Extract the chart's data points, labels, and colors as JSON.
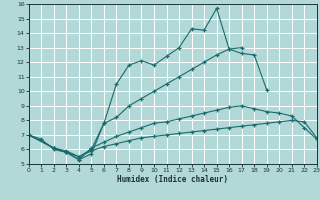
{
  "xlabel": "Humidex (Indice chaleur)",
  "background_color": "#b2d8d8",
  "grid_color": "#ffffff",
  "line_color": "#1a6b6b",
  "x_min": 0,
  "x_max": 23,
  "y_min": 5,
  "y_max": 16,
  "line1_x": [
    0,
    1,
    2,
    3,
    4,
    5,
    6,
    7,
    8,
    9,
    10,
    11,
    12,
    13,
    14,
    15,
    16,
    17,
    18,
    19
  ],
  "line1_y": [
    7.0,
    6.7,
    6.0,
    5.8,
    5.3,
    5.7,
    7.8,
    10.5,
    11.8,
    12.1,
    11.8,
    12.4,
    13.0,
    14.3,
    14.2,
    15.7,
    12.9,
    12.6,
    12.5,
    10.1
  ],
  "line2_x": [
    0,
    2,
    3,
    4,
    5,
    6,
    7,
    8,
    9,
    10,
    11,
    12,
    13,
    14,
    15,
    16,
    17
  ],
  "line2_y": [
    7.0,
    6.1,
    5.8,
    5.5,
    6.0,
    7.8,
    8.2,
    9.0,
    9.5,
    10.0,
    10.5,
    11.0,
    11.5,
    12.0,
    12.5,
    12.9,
    13.0
  ],
  "line3_x": [
    0,
    2,
    3,
    4,
    5,
    6,
    7,
    8,
    9,
    10,
    11,
    12,
    13,
    14,
    15,
    16,
    17,
    18,
    19,
    20,
    21,
    22,
    23
  ],
  "line3_y": [
    7.0,
    6.1,
    5.8,
    5.3,
    6.1,
    6.5,
    6.9,
    7.2,
    7.5,
    7.8,
    7.9,
    8.1,
    8.3,
    8.5,
    8.7,
    8.9,
    9.0,
    8.8,
    8.6,
    8.5,
    8.3,
    7.5,
    6.7
  ],
  "line4_x": [
    0,
    2,
    3,
    4,
    5,
    6,
    7,
    8,
    9,
    10,
    11,
    12,
    13,
    14,
    15,
    16,
    17,
    18,
    19,
    20,
    21,
    22,
    23
  ],
  "line4_y": [
    7.0,
    6.1,
    5.9,
    5.5,
    5.9,
    6.2,
    6.4,
    6.6,
    6.8,
    6.9,
    7.0,
    7.1,
    7.2,
    7.3,
    7.4,
    7.5,
    7.6,
    7.7,
    7.8,
    7.9,
    8.0,
    7.9,
    6.8
  ]
}
